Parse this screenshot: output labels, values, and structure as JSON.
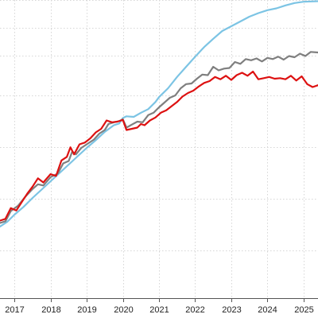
{
  "chart_data": {
    "type": "line",
    "title": "",
    "xlabel": "",
    "ylabel": "",
    "grid": true,
    "xlim": [
      2016.6,
      2025.4
    ],
    "ylim": [
      0,
      100
    ],
    "x_ticks": [
      "2017",
      "2018",
      "2019",
      "2020",
      "2021",
      "2022",
      "2023",
      "2024",
      "2025"
    ],
    "tick_values": [
      2017,
      2018,
      2019,
      2020,
      2021,
      2022,
      2023,
      2024,
      2025
    ],
    "series": [
      {
        "color": "#7cc4e4",
        "width": 2.2,
        "points": [
          [
            2016.6,
            24.0
          ],
          [
            2016.8,
            25.6
          ],
          [
            2017.0,
            28.0
          ],
          [
            2017.25,
            30.6
          ],
          [
            2017.5,
            33.6
          ],
          [
            2017.75,
            36.4
          ],
          [
            2018.0,
            39.2
          ],
          [
            2018.25,
            42.0
          ],
          [
            2018.5,
            44.8
          ],
          [
            2018.75,
            47.6
          ],
          [
            2019.0,
            50.4
          ],
          [
            2019.25,
            53.0
          ],
          [
            2019.5,
            55.8
          ],
          [
            2019.75,
            58.0
          ],
          [
            2019.9,
            58.6
          ],
          [
            2020.0,
            60.4
          ],
          [
            2020.1,
            61.0
          ],
          [
            2020.3,
            60.8
          ],
          [
            2020.5,
            62.2
          ],
          [
            2020.7,
            63.4
          ],
          [
            2020.9,
            65.8
          ],
          [
            2021.0,
            67.4
          ],
          [
            2021.25,
            70.4
          ],
          [
            2021.5,
            74.2
          ],
          [
            2021.75,
            77.6
          ],
          [
            2022.0,
            81.0
          ],
          [
            2022.25,
            84.2
          ],
          [
            2022.5,
            87.0
          ],
          [
            2022.75,
            89.6
          ],
          [
            2023.0,
            91.2
          ],
          [
            2023.25,
            92.8
          ],
          [
            2023.5,
            94.4
          ],
          [
            2023.75,
            95.6
          ],
          [
            2024.0,
            96.6
          ],
          [
            2024.25,
            97.2
          ],
          [
            2024.5,
            98.2
          ],
          [
            2024.75,
            99.0
          ],
          [
            2025.0,
            99.4
          ],
          [
            2025.4,
            99.6
          ]
        ]
      },
      {
        "color": "#7f7f7f",
        "width": 2.2,
        "points": [
          [
            2016.6,
            25.2
          ],
          [
            2016.75,
            25.8
          ],
          [
            2016.9,
            29.2
          ],
          [
            2017.1,
            31.0
          ],
          [
            2017.3,
            34.0
          ],
          [
            2017.5,
            36.6
          ],
          [
            2017.65,
            38.2
          ],
          [
            2017.8,
            37.8
          ],
          [
            2018.0,
            40.6
          ],
          [
            2018.2,
            41.8
          ],
          [
            2018.35,
            45.2
          ],
          [
            2018.5,
            46.0
          ],
          [
            2018.6,
            49.2
          ],
          [
            2018.7,
            48.2
          ],
          [
            2018.85,
            50.4
          ],
          [
            2019.0,
            51.6
          ],
          [
            2019.2,
            53.2
          ],
          [
            2019.35,
            55.2
          ],
          [
            2019.5,
            56.4
          ],
          [
            2019.6,
            58.4
          ],
          [
            2019.75,
            59.0
          ],
          [
            2019.9,
            59.4
          ],
          [
            2020.0,
            60.0
          ],
          [
            2020.1,
            57.2
          ],
          [
            2020.25,
            58.2
          ],
          [
            2020.4,
            59.2
          ],
          [
            2020.55,
            59.0
          ],
          [
            2020.7,
            61.4
          ],
          [
            2020.85,
            62.2
          ],
          [
            2021.0,
            64.0
          ],
          [
            2021.15,
            65.6
          ],
          [
            2021.3,
            67.2
          ],
          [
            2021.45,
            68.0
          ],
          [
            2021.6,
            70.4
          ],
          [
            2021.75,
            71.8
          ],
          [
            2021.9,
            72.0
          ],
          [
            2022.05,
            73.6
          ],
          [
            2022.2,
            75.0
          ],
          [
            2022.35,
            74.8
          ],
          [
            2022.5,
            77.6
          ],
          [
            2022.65,
            76.4
          ],
          [
            2022.8,
            77.0
          ],
          [
            2022.95,
            77.2
          ],
          [
            2023.1,
            79.2
          ],
          [
            2023.25,
            78.6
          ],
          [
            2023.4,
            80.2
          ],
          [
            2023.55,
            79.8
          ],
          [
            2023.7,
            80.4
          ],
          [
            2023.85,
            79.4
          ],
          [
            2024.0,
            80.6
          ],
          [
            2024.15,
            80.2
          ],
          [
            2024.3,
            81.0
          ],
          [
            2024.45,
            80.0
          ],
          [
            2024.6,
            81.2
          ],
          [
            2024.75,
            80.8
          ],
          [
            2024.9,
            82.0
          ],
          [
            2025.05,
            81.2
          ],
          [
            2025.2,
            82.6
          ],
          [
            2025.4,
            82.4
          ]
        ]
      },
      {
        "color": "#dd1111",
        "width": 2.2,
        "points": [
          [
            2016.6,
            26.0
          ],
          [
            2016.75,
            26.6
          ],
          [
            2016.9,
            30.2
          ],
          [
            2017.05,
            29.4
          ],
          [
            2017.2,
            32.2
          ],
          [
            2017.35,
            35.0
          ],
          [
            2017.5,
            37.4
          ],
          [
            2017.65,
            40.2
          ],
          [
            2017.8,
            38.8
          ],
          [
            2018.0,
            41.6
          ],
          [
            2018.15,
            41.0
          ],
          [
            2018.3,
            46.2
          ],
          [
            2018.45,
            47.4
          ],
          [
            2018.55,
            50.6
          ],
          [
            2018.65,
            48.2
          ],
          [
            2018.8,
            51.6
          ],
          [
            2018.95,
            52.2
          ],
          [
            2019.1,
            53.6
          ],
          [
            2019.25,
            55.6
          ],
          [
            2019.4,
            56.8
          ],
          [
            2019.55,
            59.6
          ],
          [
            2019.7,
            59.0
          ],
          [
            2019.85,
            59.2
          ],
          [
            2020.0,
            59.8
          ],
          [
            2020.1,
            56.4
          ],
          [
            2020.25,
            56.8
          ],
          [
            2020.4,
            57.2
          ],
          [
            2020.5,
            58.4
          ],
          [
            2020.6,
            58.0
          ],
          [
            2020.75,
            59.6
          ],
          [
            2020.9,
            60.6
          ],
          [
            2021.05,
            62.2
          ],
          [
            2021.2,
            63.0
          ],
          [
            2021.35,
            64.4
          ],
          [
            2021.5,
            65.8
          ],
          [
            2021.65,
            67.6
          ],
          [
            2021.8,
            68.8
          ],
          [
            2021.95,
            69.6
          ],
          [
            2022.1,
            71.0
          ],
          [
            2022.25,
            72.2
          ],
          [
            2022.4,
            72.8
          ],
          [
            2022.55,
            74.2
          ],
          [
            2022.7,
            73.4
          ],
          [
            2022.85,
            74.6
          ],
          [
            2023.0,
            73.2
          ],
          [
            2023.15,
            74.8
          ],
          [
            2023.3,
            75.6
          ],
          [
            2023.45,
            74.6
          ],
          [
            2023.6,
            76.0
          ],
          [
            2023.75,
            73.4
          ],
          [
            2023.9,
            73.8
          ],
          [
            2024.05,
            74.2
          ],
          [
            2024.2,
            73.6
          ],
          [
            2024.35,
            73.8
          ],
          [
            2024.5,
            73.4
          ],
          [
            2024.65,
            74.6
          ],
          [
            2024.8,
            73.0
          ],
          [
            2024.95,
            74.4
          ],
          [
            2025.1,
            71.8
          ],
          [
            2025.25,
            70.8
          ],
          [
            2025.4,
            71.4
          ]
        ]
      }
    ]
  }
}
